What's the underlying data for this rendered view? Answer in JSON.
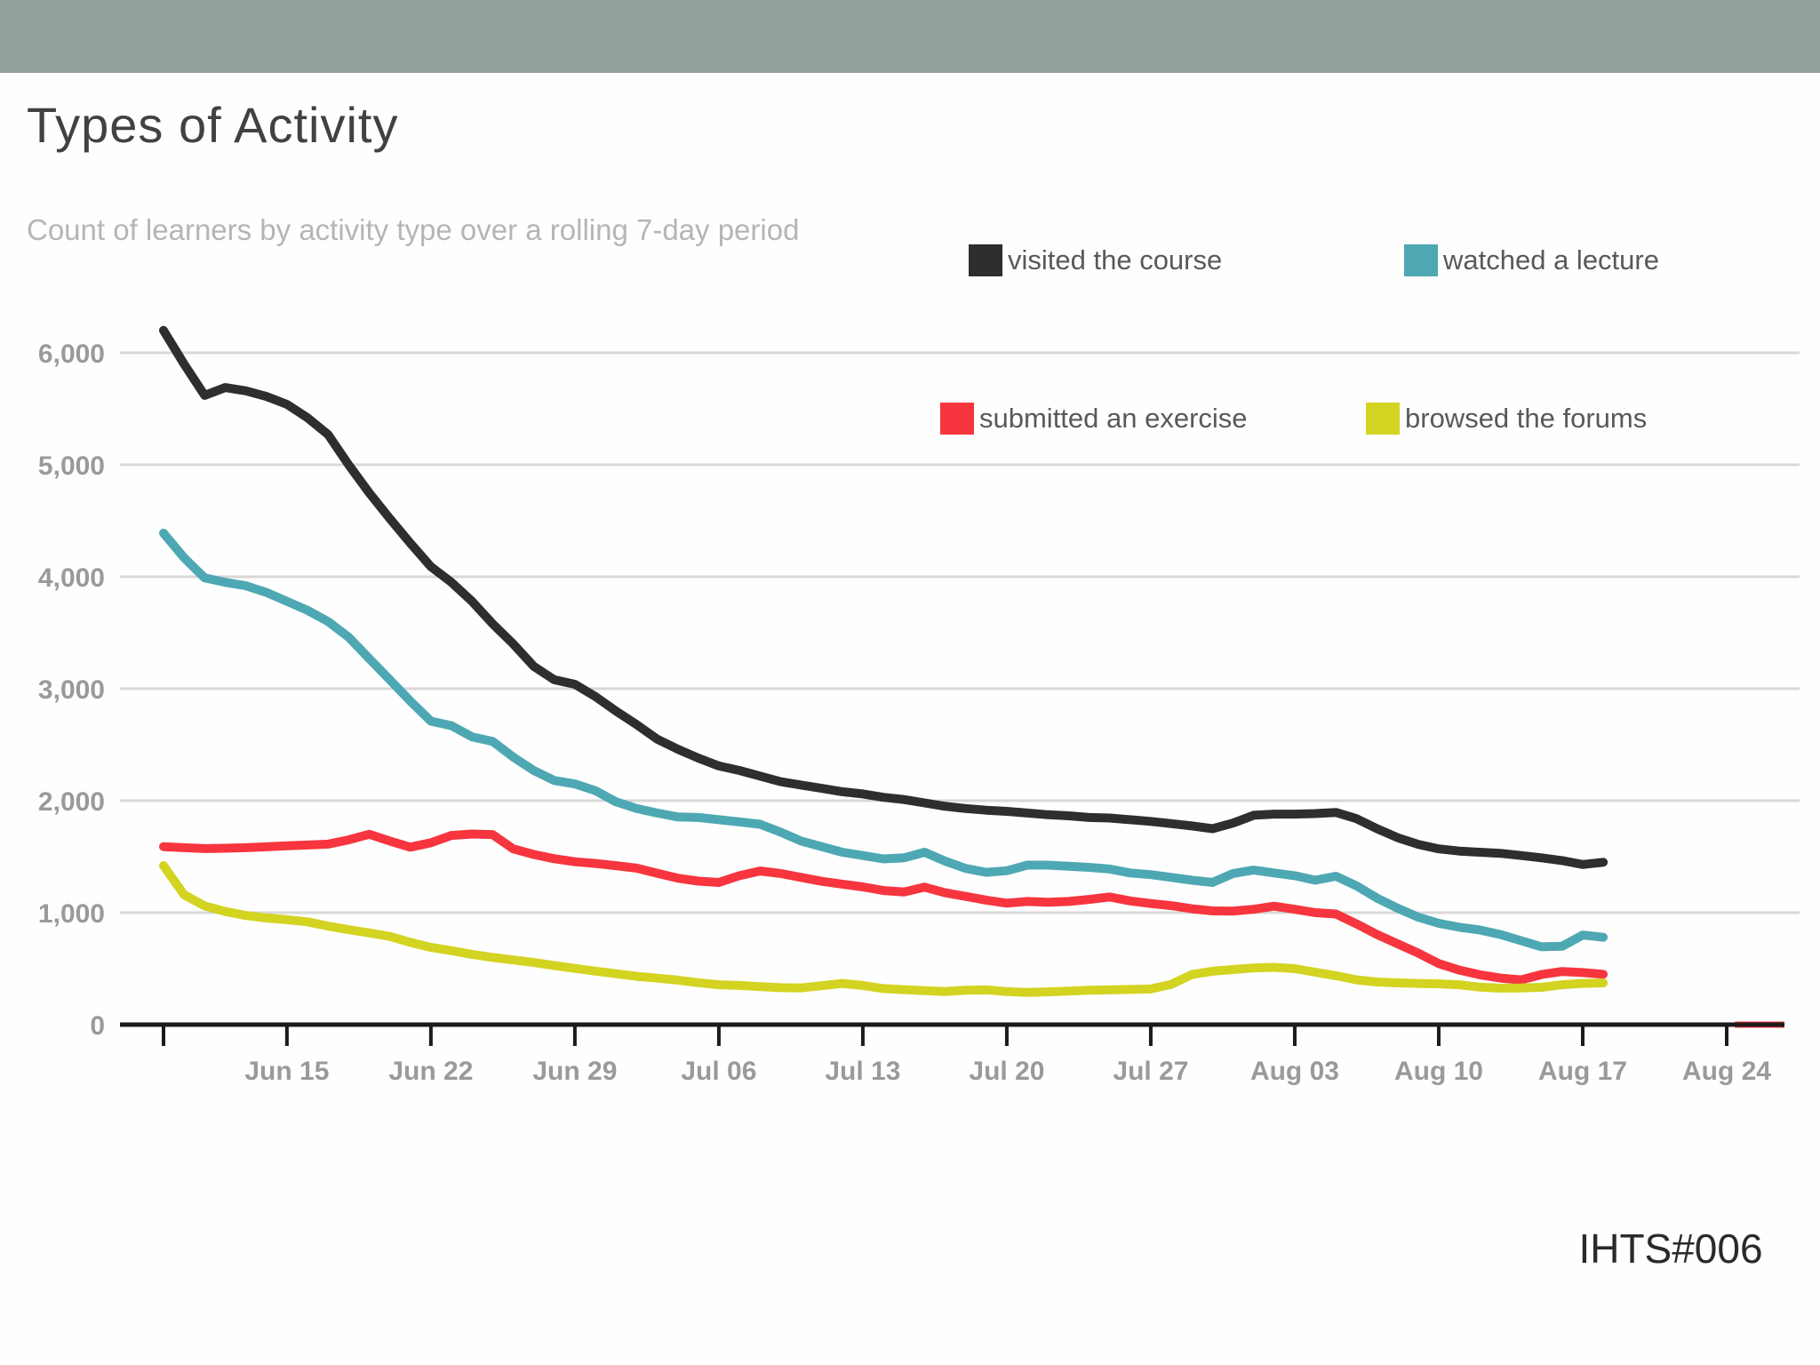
{
  "header": {
    "bar_color": "#92a19a"
  },
  "title": "Types of Activity",
  "subtitle": "Count of learners by activity type over a rolling 7-day period",
  "watermark": "IHTS#006",
  "colors": {
    "background": "#fefefe",
    "gridline": "#d8d8d8",
    "axis_line": "#1b1b1b",
    "axis_text": "#9a9a9a"
  },
  "chart_data": {
    "type": "line",
    "title": "Types of Activity",
    "subtitle": "Count of learners by activity type over a rolling 7-day period",
    "grid": "horizontal gridlines only",
    "legend_position": "top-right, two rows",
    "ylim": [
      0,
      6500
    ],
    "y_ticks": [
      {
        "value": 0,
        "label": "0"
      },
      {
        "value": 1000,
        "label": "1,000"
      },
      {
        "value": 2000,
        "label": "2,000"
      },
      {
        "value": 3000,
        "label": "3,000"
      },
      {
        "value": 4000,
        "label": "4,000"
      },
      {
        "value": 5000,
        "label": "5,000"
      },
      {
        "value": 6000,
        "label": "6,000"
      }
    ],
    "x_ticks": [
      {
        "day": 0,
        "label": ""
      },
      {
        "day": 6,
        "label": "Jun 15"
      },
      {
        "day": 13,
        "label": "Jun 22"
      },
      {
        "day": 20,
        "label": "Jun 29"
      },
      {
        "day": 27,
        "label": "Jul 06"
      },
      {
        "day": 34,
        "label": "Jul 13"
      },
      {
        "day": 41,
        "label": "Jul 20"
      },
      {
        "day": 48,
        "label": "Jul 27"
      },
      {
        "day": 55,
        "label": "Aug 03"
      },
      {
        "day": 62,
        "label": "Aug 10"
      },
      {
        "day": 69,
        "label": "Aug 17"
      },
      {
        "day": 76,
        "label": "Aug 24"
      }
    ],
    "dates": [
      "Jun 09",
      "Jun 10",
      "Jun 11",
      "Jun 12",
      "Jun 13",
      "Jun 14",
      "Jun 15",
      "Jun 16",
      "Jun 17",
      "Jun 18",
      "Jun 19",
      "Jun 20",
      "Jun 21",
      "Jun 22",
      "Jun 23",
      "Jun 24",
      "Jun 25",
      "Jun 26",
      "Jun 27",
      "Jun 28",
      "Jun 29",
      "Jun 30",
      "Jul 01",
      "Jul 02",
      "Jul 03",
      "Jul 04",
      "Jul 05",
      "Jul 06",
      "Jul 07",
      "Jul 08",
      "Jul 09",
      "Jul 10",
      "Jul 11",
      "Jul 12",
      "Jul 13",
      "Jul 14",
      "Jul 15",
      "Jul 16",
      "Jul 17",
      "Jul 18",
      "Jul 19",
      "Jul 20",
      "Jul 21",
      "Jul 22",
      "Jul 23",
      "Jul 24",
      "Jul 25",
      "Jul 26",
      "Jul 27",
      "Jul 28",
      "Jul 29",
      "Jul 30",
      "Jul 31",
      "Aug 01",
      "Aug 02",
      "Aug 03",
      "Aug 04",
      "Aug 05",
      "Aug 06",
      "Aug 07",
      "Aug 08",
      "Aug 09",
      "Aug 10",
      "Aug 11",
      "Aug 12",
      "Aug 13",
      "Aug 14",
      "Aug 15",
      "Aug 16",
      "Aug 17",
      "Aug 18"
    ],
    "series": [
      {
        "name": "visited the course",
        "color": "#2e2e30",
        "values": [
          6200,
          5900,
          5620,
          5690,
          5660,
          5610,
          5540,
          5420,
          5270,
          5000,
          4750,
          4520,
          4300,
          4090,
          3950,
          3780,
          3580,
          3400,
          3200,
          3080,
          3040,
          2930,
          2800,
          2680,
          2550,
          2460,
          2380,
          2310,
          2270,
          2220,
          2170,
          2140,
          2110,
          2080,
          2060,
          2030,
          2010,
          1980,
          1950,
          1930,
          1915,
          1905,
          1890,
          1875,
          1865,
          1850,
          1845,
          1830,
          1815,
          1795,
          1775,
          1750,
          1800,
          1870,
          1880,
          1880,
          1885,
          1895,
          1840,
          1750,
          1670,
          1610,
          1570,
          1550,
          1540,
          1530,
          1510,
          1490,
          1465,
          1430,
          1450
        ]
      },
      {
        "name": "watched a lecture",
        "color": "#4ea8b3",
        "values": [
          4390,
          4170,
          3990,
          3950,
          3920,
          3860,
          3780,
          3700,
          3600,
          3460,
          3270,
          3080,
          2890,
          2710,
          2670,
          2570,
          2530,
          2390,
          2270,
          2180,
          2150,
          2090,
          1990,
          1930,
          1890,
          1855,
          1850,
          1830,
          1810,
          1790,
          1720,
          1640,
          1590,
          1540,
          1510,
          1480,
          1490,
          1540,
          1460,
          1395,
          1360,
          1375,
          1425,
          1425,
          1415,
          1405,
          1390,
          1355,
          1340,
          1315,
          1290,
          1270,
          1350,
          1380,
          1355,
          1330,
          1290,
          1325,
          1240,
          1130,
          1040,
          960,
          905,
          870,
          845,
          805,
          750,
          695,
          700,
          800,
          780
        ]
      },
      {
        "name": "submitted an exercise",
        "color": "#f7353e",
        "values": [
          1590,
          1580,
          1572,
          1575,
          1580,
          1588,
          1598,
          1604,
          1612,
          1650,
          1700,
          1640,
          1585,
          1625,
          1690,
          1702,
          1698,
          1570,
          1520,
          1482,
          1455,
          1440,
          1420,
          1398,
          1352,
          1308,
          1282,
          1270,
          1330,
          1372,
          1350,
          1315,
          1280,
          1255,
          1230,
          1198,
          1185,
          1228,
          1178,
          1145,
          1112,
          1085,
          1100,
          1094,
          1100,
          1118,
          1140,
          1105,
          1082,
          1063,
          1035,
          1016,
          1014,
          1030,
          1058,
          1030,
          1000,
          988,
          900,
          805,
          722,
          640,
          545,
          487,
          445,
          416,
          400,
          448,
          475,
          465,
          450
        ]
      },
      {
        "name": "browsed the forums",
        "color": "#d3d321",
        "values": [
          1420,
          1160,
          1060,
          1010,
          975,
          952,
          937,
          918,
          880,
          848,
          820,
          788,
          735,
          690,
          660,
          628,
          600,
          578,
          555,
          528,
          502,
          478,
          455,
          432,
          415,
          398,
          375,
          356,
          350,
          340,
          330,
          328,
          348,
          368,
          350,
          322,
          313,
          303,
          296,
          308,
          310,
          295,
          287,
          293,
          300,
          307,
          310,
          314,
          318,
          360,
          448,
          477,
          492,
          506,
          512,
          500,
          468,
          437,
          400,
          381,
          373,
          368,
          364,
          356,
          335,
          325,
          327,
          333,
          356,
          368,
          373
        ]
      }
    ],
    "red_zero_segment": {
      "series": "submitted an exercise",
      "from_day": 76.4,
      "to_day": 78.8,
      "value": 0
    },
    "legend_rows": [
      [
        "visited the course",
        "watched a lecture"
      ],
      [
        "submitted an exercise",
        "browsed the forums"
      ]
    ]
  }
}
